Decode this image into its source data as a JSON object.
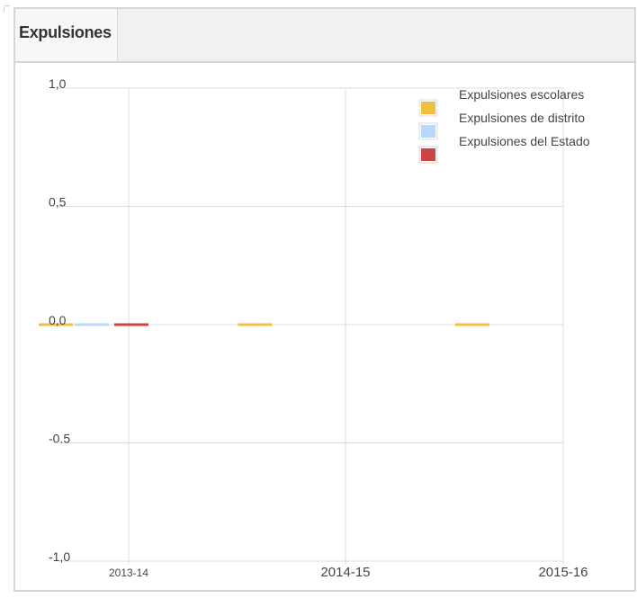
{
  "panel": {
    "title": "Expulsiones"
  },
  "chart_data": {
    "type": "bar",
    "categories": [
      "2013-14",
      "2014-15",
      "2015-16"
    ],
    "series": [
      {
        "name": "Expulsiones escolares",
        "color": "#f0c040",
        "values": [
          0,
          0,
          0
        ]
      },
      {
        "name": "Expulsiones de distrito",
        "color": "#b8d8f8",
        "values": [
          0,
          null,
          null
        ]
      },
      {
        "name": "Expulsiones del Estado",
        "color": "#cc4444",
        "values": [
          0,
          null,
          null
        ]
      }
    ],
    "y_ticks": [
      {
        "value": 1.0,
        "label": "1,0"
      },
      {
        "value": 0.5,
        "label": "0,5"
      },
      {
        "value": 0.0,
        "label": "0,0"
      },
      {
        "value": -0.5,
        "label": "-0.5"
      },
      {
        "value": -1.0,
        "label": "-1,0"
      }
    ],
    "ylim": [
      -1.0,
      1.0
    ],
    "grid": true,
    "legend": "top-right"
  }
}
